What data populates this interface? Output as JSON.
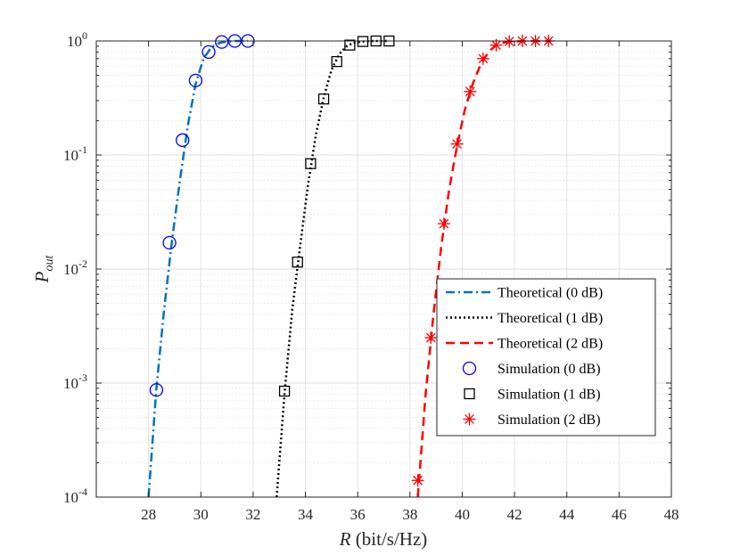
{
  "chart_data": {
    "type": "line",
    "yscale": "log",
    "xlabel_italic": "R",
    "xlabel_rest": " (bit/s/Hz)",
    "ylabel_main": "P",
    "ylabel_sub": "out",
    "xlim": [
      26,
      48
    ],
    "ylim": [
      0.0001,
      1
    ],
    "xticks": [
      28,
      30,
      32,
      34,
      36,
      38,
      40,
      42,
      44,
      46,
      48
    ],
    "yticks": [
      {
        "value": 0.0001,
        "base": "10",
        "exp": "-4"
      },
      {
        "value": 0.001,
        "base": "10",
        "exp": "-3"
      },
      {
        "value": 0.01,
        "base": "10",
        "exp": "-2"
      },
      {
        "value": 0.1,
        "base": "10",
        "exp": "-1"
      },
      {
        "value": 1,
        "base": "10",
        "exp": "0"
      }
    ],
    "grid": true,
    "legend_position": "bottom-right",
    "series": [
      {
        "name": "Theoretical (0 dB)",
        "kind": "line",
        "dash": "dashdot",
        "color": "#0072BD",
        "x": [
          28.0,
          28.3,
          28.6,
          28.9,
          29.2,
          29.5,
          29.8,
          30.1,
          30.4,
          30.7,
          31.0,
          31.4,
          31.8
        ],
        "y": [
          0.0001,
          0.0009,
          0.0045,
          0.018,
          0.06,
          0.18,
          0.42,
          0.7,
          0.88,
          0.96,
          0.99,
          1.0,
          1.0
        ]
      },
      {
        "name": "Theoretical (1 dB)",
        "kind": "line",
        "dash": "dotted",
        "color": "#000000",
        "x": [
          32.9,
          33.2,
          33.5,
          33.8,
          34.1,
          34.4,
          34.7,
          35.0,
          35.3,
          35.6,
          35.9,
          36.2,
          36.6,
          37.0,
          37.2
        ],
        "y": [
          0.0001,
          0.0008,
          0.0045,
          0.016,
          0.055,
          0.15,
          0.32,
          0.56,
          0.77,
          0.91,
          0.97,
          0.99,
          1.0,
          1.0,
          1.0
        ]
      },
      {
        "name": "Theoretical (2 dB)",
        "kind": "line",
        "dash": "dashed",
        "color": "#FF0000",
        "x": [
          38.3,
          38.6,
          38.9,
          39.2,
          39.5,
          39.8,
          40.1,
          40.4,
          40.7,
          41.0,
          41.3,
          41.6,
          42.0,
          42.5,
          43.0,
          43.4
        ],
        "y": [
          0.0001,
          0.0008,
          0.004,
          0.016,
          0.05,
          0.12,
          0.25,
          0.42,
          0.62,
          0.8,
          0.92,
          0.97,
          0.99,
          1.0,
          1.0,
          1.0
        ]
      },
      {
        "name": "Simulation (0 dB)",
        "kind": "marker",
        "marker": "circle",
        "color": "#0000FF",
        "x": [
          28.3,
          28.8,
          29.3,
          29.8,
          30.3,
          30.8,
          31.3,
          31.8
        ],
        "y": [
          0.00087,
          0.017,
          0.135,
          0.45,
          0.8,
          0.98,
          1.0,
          1.0
        ]
      },
      {
        "name": "Simulation (1 dB)",
        "kind": "marker",
        "marker": "square",
        "color": "#000000",
        "x": [
          33.2,
          33.7,
          34.2,
          34.7,
          35.2,
          35.7,
          36.2,
          36.7,
          37.2
        ],
        "y": [
          0.00085,
          0.0115,
          0.084,
          0.31,
          0.66,
          0.92,
          0.99,
          1.0,
          1.0
        ]
      },
      {
        "name": "Simulation (2 dB)",
        "kind": "marker",
        "marker": "asterisk",
        "color": "#FF0000",
        "x": [
          38.3,
          38.8,
          39.3,
          39.8,
          40.3,
          40.8,
          41.3,
          41.8,
          42.3,
          42.8,
          43.3
        ],
        "y": [
          0.00014,
          0.0025,
          0.025,
          0.125,
          0.36,
          0.7,
          0.92,
          0.99,
          1.0,
          1.0,
          1.0
        ]
      }
    ]
  }
}
